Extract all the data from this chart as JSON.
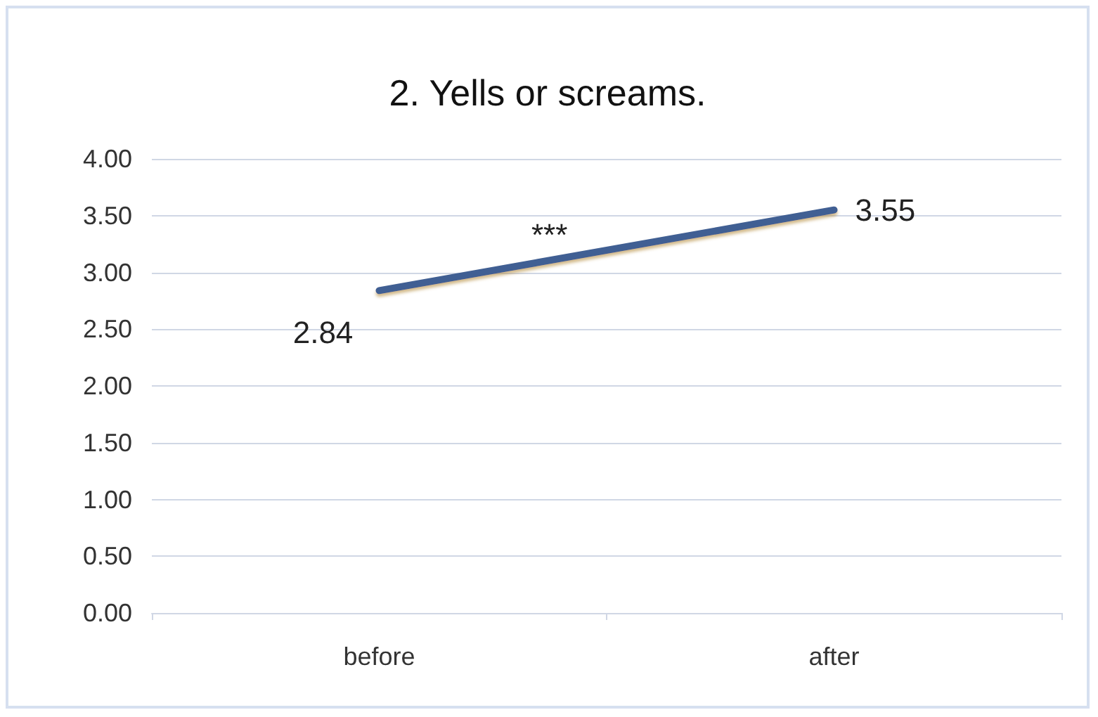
{
  "chart_data": {
    "type": "line",
    "title": "2. Yells or screams.",
    "categories": [
      "before",
      "after"
    ],
    "series": [
      {
        "color": "#3f5f93",
        "values": [
          2.84,
          3.55
        ]
      }
    ],
    "ylim": [
      0,
      4
    ],
    "yticks": [
      {
        "value": 0,
        "label": "0.00"
      },
      {
        "value": 0.5,
        "label": "0.50"
      },
      {
        "value": 1,
        "label": "1.00"
      },
      {
        "value": 1.5,
        "label": "1.50"
      },
      {
        "value": 2,
        "label": "2.00"
      },
      {
        "value": 2.5,
        "label": "2.50"
      },
      {
        "value": 3,
        "label": "3.00"
      },
      {
        "value": 3.5,
        "label": "3.50"
      },
      {
        "value": 4,
        "label": "4.00"
      }
    ],
    "grid": "y",
    "data_labels": true,
    "marker": "none",
    "line_style": "solid",
    "annotations": [
      "***"
    ]
  }
}
